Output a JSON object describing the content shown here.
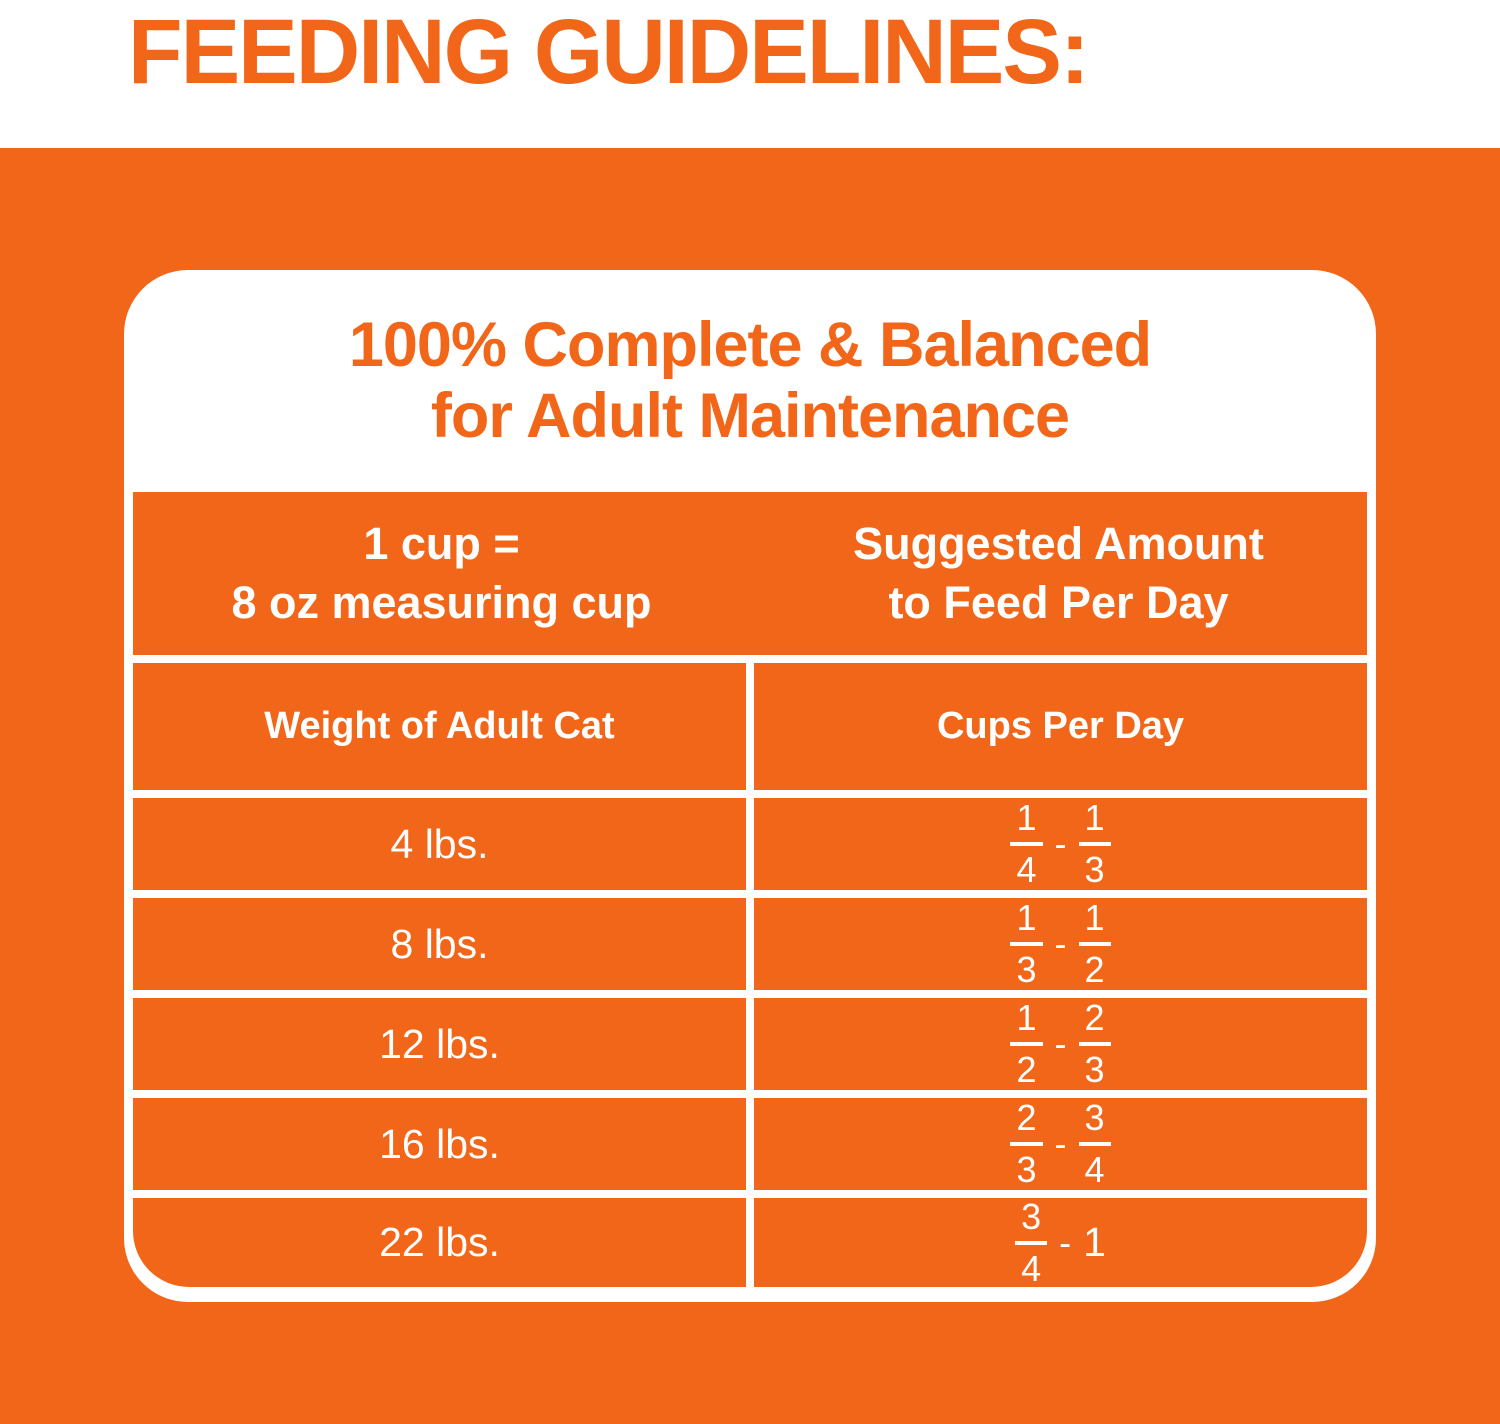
{
  "title": "FEEDING GUIDELINES:",
  "card": {
    "heading": [
      "100% Complete & Balanced",
      "for Adult Maintenance"
    ],
    "table": {
      "header_left": [
        "1 cup =",
        "8 oz measuring cup"
      ],
      "header_right": [
        "Suggested Amount",
        "to Feed Per Day"
      ],
      "col_left": "Weight of Adult Cat",
      "col_right": "Cups Per Day",
      "separator": "-",
      "rows": [
        {
          "weight": "4 lbs.",
          "min_num": "1",
          "min_den": "4",
          "max_num": "1",
          "max_den": "3"
        },
        {
          "weight": "8 lbs.",
          "min_num": "1",
          "min_den": "3",
          "max_num": "1",
          "max_den": "2"
        },
        {
          "weight": "12 lbs.",
          "min_num": "1",
          "min_den": "2",
          "max_num": "2",
          "max_den": "3"
        },
        {
          "weight": "16 lbs.",
          "min_num": "2",
          "min_den": "3",
          "max_num": "3",
          "max_den": "4"
        },
        {
          "weight": "22 lbs.",
          "min_num": "3",
          "min_den": "4",
          "max_whole": "1"
        }
      ]
    }
  },
  "colors": {
    "orange": "#F2661A",
    "white": "#FFFFFF"
  }
}
